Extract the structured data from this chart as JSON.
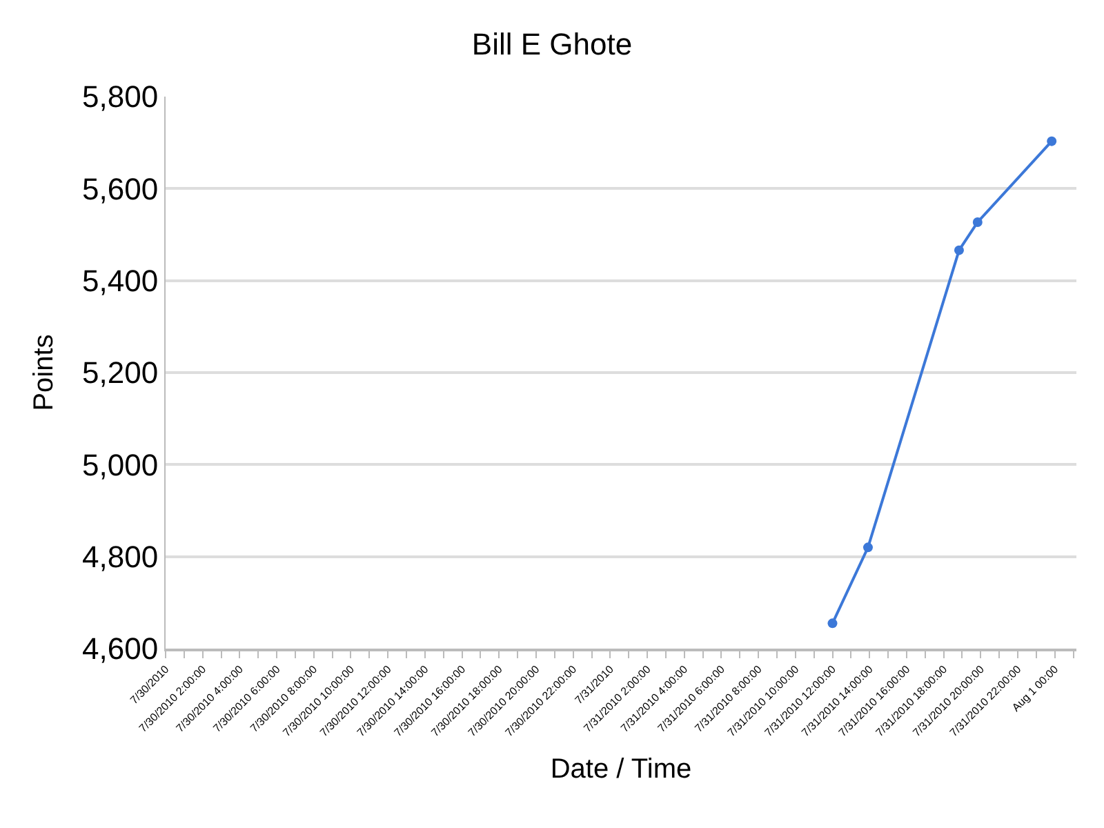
{
  "chart_data": {
    "type": "line",
    "title": "Bill E Ghote",
    "xlabel": "Date / Time",
    "ylabel": "Points",
    "x": [
      "2010-07-31T12:00",
      "2010-07-31T13:55",
      "2010-07-31T18:50",
      "2010-07-31T19:50",
      "2010-07-31T23:50"
    ],
    "series": [
      {
        "color": "#3c78d8",
        "values": [
          4655,
          4820,
          5466,
          5527,
          5703
        ]
      }
    ],
    "xlim": [
      "2010-07-30T00:00",
      "2010-08-01T01:10"
    ],
    "xticks": [
      {
        "value": "2010-07-30T00:00",
        "label": "7/30/2010"
      },
      {
        "value": "2010-07-30T01:00",
        "label": null
      },
      {
        "value": "2010-07-30T02:00",
        "label": "7/30/2010 2:00:00"
      },
      {
        "value": "2010-07-30T03:00",
        "label": null
      },
      {
        "value": "2010-07-30T04:00",
        "label": "7/30/2010 4:00:00"
      },
      {
        "value": "2010-07-30T05:00",
        "label": null
      },
      {
        "value": "2010-07-30T06:00",
        "label": "7/30/2010 6:00:00"
      },
      {
        "value": "2010-07-30T07:00",
        "label": null
      },
      {
        "value": "2010-07-30T08:00",
        "label": "7/30/2010 8:00:00"
      },
      {
        "value": "2010-07-30T09:00",
        "label": null
      },
      {
        "value": "2010-07-30T10:00",
        "label": "7/30/2010 10:00:00"
      },
      {
        "value": "2010-07-30T11:00",
        "label": null
      },
      {
        "value": "2010-07-30T12:00",
        "label": "7/30/2010 12:00:00"
      },
      {
        "value": "2010-07-30T13:00",
        "label": null
      },
      {
        "value": "2010-07-30T14:00",
        "label": "7/30/2010 14:00:00"
      },
      {
        "value": "2010-07-30T15:00",
        "label": null
      },
      {
        "value": "2010-07-30T16:00",
        "label": "7/30/2010 16:00:00"
      },
      {
        "value": "2010-07-30T17:00",
        "label": null
      },
      {
        "value": "2010-07-30T18:00",
        "label": "7/30/2010 18:00:00"
      },
      {
        "value": "2010-07-30T19:00",
        "label": null
      },
      {
        "value": "2010-07-30T20:00",
        "label": "7/30/2010 20:00:00"
      },
      {
        "value": "2010-07-30T21:00",
        "label": null
      },
      {
        "value": "2010-07-30T22:00",
        "label": "7/30/2010 22:00:00"
      },
      {
        "value": "2010-07-30T23:00",
        "label": null
      },
      {
        "value": "2010-07-31T00:00",
        "label": "7/31/2010"
      },
      {
        "value": "2010-07-31T01:00",
        "label": null
      },
      {
        "value": "2010-07-31T02:00",
        "label": "7/31/2010 2:00:00"
      },
      {
        "value": "2010-07-31T03:00",
        "label": null
      },
      {
        "value": "2010-07-31T04:00",
        "label": "7/31/2010 4:00:00"
      },
      {
        "value": "2010-07-31T05:00",
        "label": null
      },
      {
        "value": "2010-07-31T06:00",
        "label": "7/31/2010 6:00:00"
      },
      {
        "value": "2010-07-31T07:00",
        "label": null
      },
      {
        "value": "2010-07-31T08:00",
        "label": "7/31/2010 8:00:00"
      },
      {
        "value": "2010-07-31T09:00",
        "label": null
      },
      {
        "value": "2010-07-31T10:00",
        "label": "7/31/2010 10:00:00"
      },
      {
        "value": "2010-07-31T11:00",
        "label": null
      },
      {
        "value": "2010-07-31T12:00",
        "label": "7/31/2010 12:00:00"
      },
      {
        "value": "2010-07-31T13:00",
        "label": null
      },
      {
        "value": "2010-07-31T14:00",
        "label": "7/31/2010 14:00:00"
      },
      {
        "value": "2010-07-31T15:00",
        "label": null
      },
      {
        "value": "2010-07-31T16:00",
        "label": "7/31/2010 16:00:00"
      },
      {
        "value": "2010-07-31T17:00",
        "label": null
      },
      {
        "value": "2010-07-31T18:00",
        "label": "7/31/2010 18:00:00"
      },
      {
        "value": "2010-07-31T19:00",
        "label": null
      },
      {
        "value": "2010-07-31T20:00",
        "label": "7/31/2010 20:00:00"
      },
      {
        "value": "2010-07-31T21:00",
        "label": null
      },
      {
        "value": "2010-07-31T22:00",
        "label": "7/31/2010 22:00:00"
      },
      {
        "value": "2010-07-31T23:00",
        "label": null
      },
      {
        "value": "2010-08-01T00:00",
        "label": "Aug 1 00:00"
      },
      {
        "value": "2010-08-01T01:00",
        "label": null
      }
    ],
    "ylim": [
      4600,
      5800
    ],
    "yticks": [
      {
        "value": 4600,
        "label": "4,600"
      },
      {
        "value": 4800,
        "label": "4,800"
      },
      {
        "value": 5000,
        "label": "5,000"
      },
      {
        "value": 5200,
        "label": "5,200"
      },
      {
        "value": 5400,
        "label": "5,400"
      },
      {
        "value": 5600,
        "label": "5,600"
      },
      {
        "value": 5800,
        "label": "5,800"
      }
    ],
    "grid": "y",
    "marker": "circle",
    "line_style": "solid",
    "legend": false
  }
}
